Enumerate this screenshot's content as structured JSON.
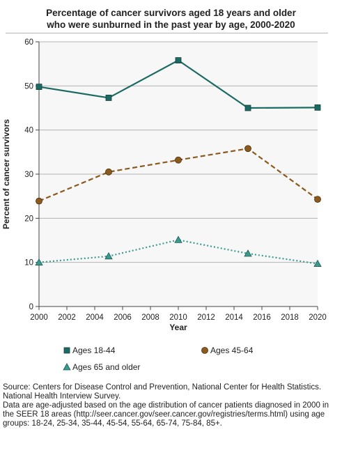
{
  "title_line1": "Percentage of cancer survivors aged 18 years and older",
  "title_line2": "who were sunburned in the past year by age, 2000-2020",
  "source_line1": "Source: Centers for Disease Control and Prevention, National Center for Health Statistics. National Health Interview Survey.",
  "source_line2": "Data are age-adjusted based on the age distribution of cancer patients diagnosed in 2000 in the SEER 18 areas (http://seer.cancer.gov/seer.cancer.gov/registries/terms.html) using age groups: 18-24, 25-34, 35-44, 45-54, 55-64, 65-74, 75-84, 85+.",
  "chart_data": {
    "type": "line",
    "xlabel": "Year",
    "ylabel": "Percent of cancer survivors",
    "xlim": [
      2000,
      2020
    ],
    "ylim": [
      0,
      60
    ],
    "x_ticks": [
      2000,
      2002,
      2004,
      2006,
      2008,
      2010,
      2012,
      2014,
      2016,
      2018,
      2020
    ],
    "y_ticks": [
      0,
      10,
      20,
      30,
      40,
      50,
      60
    ],
    "grid": "horizontal",
    "legend_position": "bottom",
    "series": [
      {
        "name": "Ages 18-44",
        "color": "#1b6b63",
        "marker": "square",
        "line": "solid",
        "x": [
          2000,
          2005,
          2010,
          2015,
          2020
        ],
        "y": [
          49.8,
          47.3,
          55.8,
          45.0,
          45.1
        ]
      },
      {
        "name": "Ages 45-64",
        "color": "#8b5a1e",
        "marker": "circle",
        "line": "dashed",
        "x": [
          2000,
          2005,
          2010,
          2015,
          2020
        ],
        "y": [
          23.9,
          30.5,
          33.2,
          35.8,
          24.3
        ]
      },
      {
        "name": "Ages 65 and older",
        "color": "#3a9a8e",
        "marker": "triangle",
        "line": "dotted",
        "x": [
          2000,
          2005,
          2010,
          2015,
          2020
        ],
        "y": [
          10.0,
          11.4,
          15.1,
          12.0,
          9.7
        ]
      }
    ]
  }
}
